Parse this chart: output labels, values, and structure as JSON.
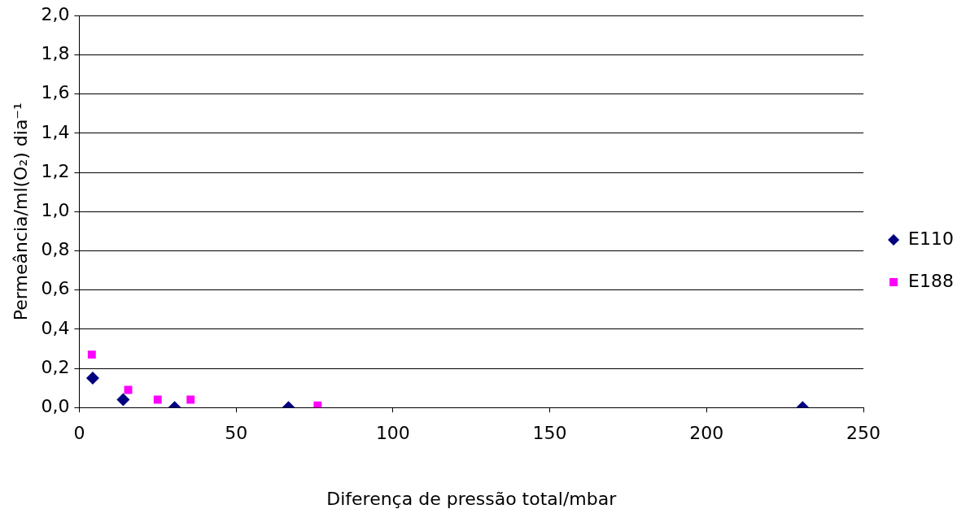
{
  "chart_data": {
    "type": "scatter",
    "xlabel": "Diferença de pressão total/mbar",
    "ylabel": "Permeância/ml(O₂) dia⁻¹",
    "xlim": [
      0,
      250
    ],
    "xticks": [
      0,
      50,
      100,
      150,
      200,
      250
    ],
    "ylim": [
      0,
      2
    ],
    "yticks": [
      {
        "value": 0,
        "label": "0,0"
      },
      {
        "value": 0.2,
        "label": "0,2"
      },
      {
        "value": 0.4,
        "label": "0,4"
      },
      {
        "value": 0.6,
        "label": "0,6"
      },
      {
        "value": 0.8,
        "label": "0,8"
      },
      {
        "value": 1,
        "label": "1,0"
      },
      {
        "value": 1.2,
        "label": "1,2"
      },
      {
        "value": 1.4,
        "label": "1,4"
      },
      {
        "value": 1.6,
        "label": "1,6"
      },
      {
        "value": 1.8,
        "label": "1,8"
      },
      {
        "value": 2,
        "label": "2,0"
      }
    ],
    "grid": "y",
    "legend": "right",
    "series": [
      {
        "name": "E110",
        "color": "#000080",
        "marker": "diamond",
        "x": [
          4.3,
          14,
          30.4,
          66.7,
          230.6
        ],
        "values": [
          0.15,
          0.04,
          0,
          0,
          0
        ]
      },
      {
        "name": "E188",
        "color": "#ff00ff",
        "marker": "square",
        "x": [
          4,
          15.6,
          25,
          35.5,
          76
        ],
        "values": [
          0.27,
          0.09,
          0.04,
          0.04,
          0.01
        ]
      }
    ]
  }
}
